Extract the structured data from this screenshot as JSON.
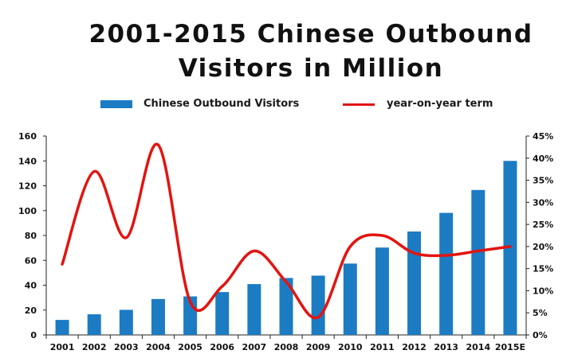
{
  "chart_data": {
    "type": "bar",
    "title_lines": [
      "2001-2015 Chinese Outbound",
      "Visitors in Million"
    ],
    "categories": [
      "2001",
      "2002",
      "2003",
      "2004",
      "2005",
      "2006",
      "2007",
      "2008",
      "2009",
      "2010",
      "2011",
      "2012",
      "2013",
      "2014",
      "2015E"
    ],
    "series": [
      {
        "name": "Chinese Outbound Visitors",
        "type": "bar",
        "axis": "left",
        "color": "#1b7cc4",
        "values": [
          12.1,
          16.6,
          20.2,
          28.9,
          31.0,
          34.5,
          40.9,
          45.8,
          47.7,
          57.4,
          70.3,
          83.2,
          98.2,
          116.6,
          140.0
        ]
      },
      {
        "name": "year-on-year term",
        "type": "line",
        "axis": "right",
        "color": "#e3140f",
        "values": [
          16,
          37,
          22,
          43,
          7.5,
          11,
          19,
          12,
          4,
          20,
          22.5,
          18.5,
          18,
          19,
          20
        ]
      }
    ],
    "y_left": {
      "min": 0,
      "max": 160,
      "ticks": [
        "0",
        "20",
        "40",
        "60",
        "80",
        "100",
        "120",
        "140",
        "160"
      ]
    },
    "y_right": {
      "min": 0,
      "max": 45,
      "ticks": [
        "0%",
        "5%",
        "10%",
        "15%",
        "20%",
        "25%",
        "30%",
        "35%",
        "40%",
        "45%"
      ]
    },
    "legend_position": "top",
    "grid": false
  }
}
